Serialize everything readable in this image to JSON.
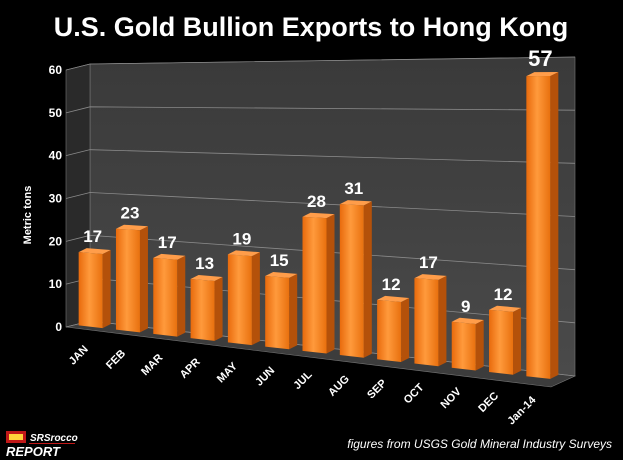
{
  "chart_data": {
    "type": "bar",
    "title": "U.S. Gold Bullion Exports to Hong Kong",
    "ylabel": "Metric tons",
    "xlabel": "",
    "ylim": [
      0,
      60
    ],
    "yticks": [
      0,
      10,
      20,
      30,
      40,
      50,
      60
    ],
    "categories": [
      "JAN",
      "FEB",
      "MAR",
      "APR",
      "MAY",
      "JUN",
      "JUL",
      "AUG",
      "SEP",
      "OCT",
      "NOV",
      "DEC",
      "Jan-14"
    ],
    "values": [
      17,
      23,
      17,
      13,
      19,
      15,
      28,
      31,
      12,
      17,
      9,
      12,
      57
    ],
    "grid": true,
    "bar_color": "#f07a1a"
  },
  "source_note": "figures from USGS Gold Mineral Industry Surveys",
  "logo": {
    "top": "SRSrocco",
    "bottom": "REPORT"
  }
}
